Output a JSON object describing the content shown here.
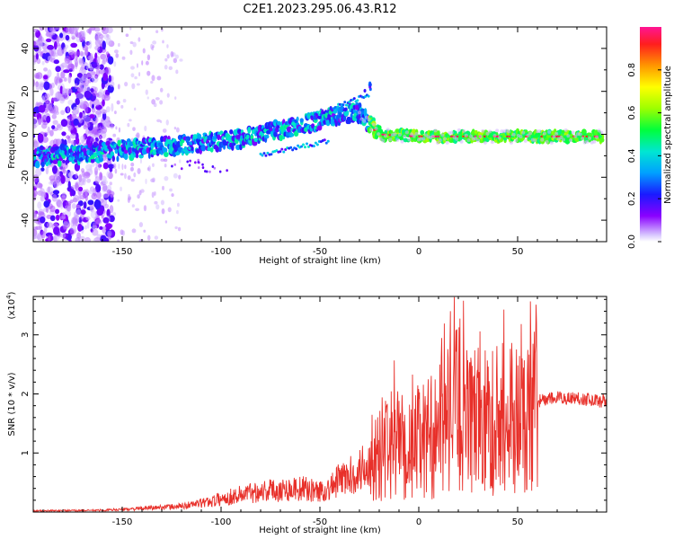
{
  "title": "C2E1.2023.295.06.43.R12",
  "chart_data": [
    {
      "type": "heatmap",
      "xlabel": "Height of straight line (km)",
      "ylabel": "Frequency (Hz)",
      "xlim": [
        -195,
        95
      ],
      "ylim": [
        -50,
        50
      ],
      "xticks": [
        -150,
        -100,
        -50,
        0,
        50
      ],
      "yticks": [
        -40,
        -20,
        0,
        20,
        40
      ],
      "colorbar": {
        "label": "Normalized spectral amplitude",
        "ticks": [
          "0.0",
          "0.2",
          "0.4",
          "0.6",
          "0.8"
        ],
        "colormap": "rainbow",
        "range": [
          0,
          1
        ]
      },
      "ridge": {
        "description_values": [
          {
            "x": -160,
            "y": -8
          },
          {
            "x": -120,
            "y": -5
          },
          {
            "x": -90,
            "y": -2
          },
          {
            "x": -60,
            "y": 4
          },
          {
            "x": -40,
            "y": 9
          },
          {
            "x": -30,
            "y": 10
          },
          {
            "x": -20,
            "y": 0
          },
          {
            "x": 0,
            "y": -1
          },
          {
            "x": 50,
            "y": -1
          },
          {
            "x": 92,
            "y": -1
          }
        ]
      }
    },
    {
      "type": "line",
      "xlabel": "Height of straight line (km)",
      "ylabel": "SNR (10 * v/v)",
      "yscale_label": "(x10",
      "yscale_exp": "4",
      "yscale_close": ")",
      "xlim": [
        -195,
        95
      ],
      "ylim": [
        0,
        3.65
      ],
      "xticks": [
        -150,
        -100,
        -50,
        0,
        50
      ],
      "yticks": [
        1,
        2,
        3
      ],
      "color": "#e8302a",
      "series": [
        {
          "x": [
            -195,
            -160,
            -140,
            -120,
            -110,
            -100,
            -90,
            -80,
            -70,
            -60,
            -50,
            -45,
            -40,
            -35,
            -30,
            -25,
            -20,
            -15,
            -10,
            -5,
            0,
            5,
            10,
            15,
            20,
            25,
            30,
            35,
            40,
            45,
            50,
            55,
            60,
            70,
            80,
            92
          ],
          "y": [
            0.02,
            0.03,
            0.06,
            0.1,
            0.15,
            0.22,
            0.3,
            0.36,
            0.38,
            0.4,
            0.35,
            0.4,
            0.55,
            0.6,
            0.7,
            0.85,
            1.0,
            1.2,
            1.25,
            1.1,
            1.3,
            1.35,
            1.5,
            1.7,
            1.9,
            1.6,
            1.7,
            1.6,
            1.75,
            1.8,
            1.7,
            1.75,
            1.9,
            1.95,
            1.95,
            1.9
          ]
        }
      ]
    }
  ]
}
